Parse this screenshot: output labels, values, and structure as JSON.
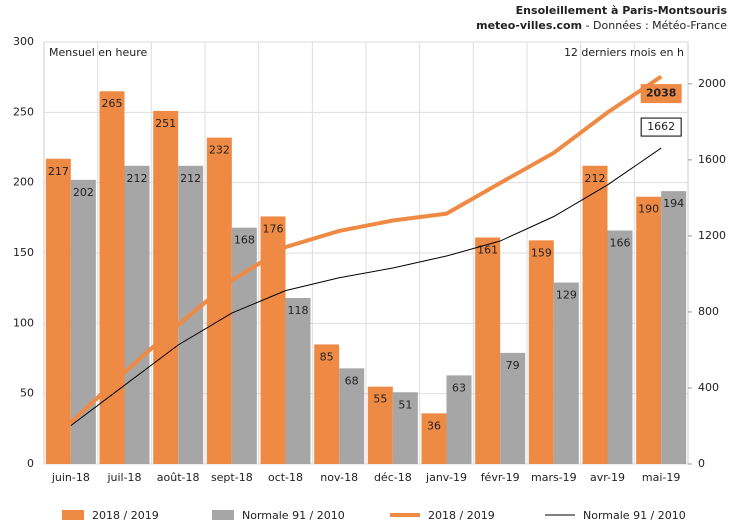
{
  "chart_data": {
    "type": "bar",
    "title": "Ensoleillement à Paris-Montsouris",
    "subtitle_source": "meteo-villes.com",
    "subtitle_rest": "- Données : Météo-France",
    "y_label": "Mensuel en heure",
    "y2_label": "12 derniers mois en h",
    "categories": [
      "juin-18",
      "juil-18",
      "août-18",
      "sept-18",
      "oct-18",
      "nov-18",
      "déc-18",
      "janv-19",
      "févr-19",
      "mars-19",
      "avr-19",
      "mai-19"
    ],
    "series": [
      {
        "name": "2018 / 2019",
        "type": "bar",
        "color": "#ef8a45",
        "values": [
          217,
          265,
          251,
          232,
          176,
          85,
          55,
          36,
          161,
          159,
          212,
          190
        ]
      },
      {
        "name": "Normale 91 / 2010",
        "type": "bar",
        "color": "#a6a6a6",
        "values": [
          202,
          212,
          212,
          168,
          118,
          68,
          51,
          63,
          79,
          129,
          166,
          194
        ]
      },
      {
        "name": "2018 / 2019",
        "type": "line",
        "axis": "y2",
        "color": "#ef8a45",
        "values": [
          217,
          482,
          733,
          965,
          1141,
          1226,
          1281,
          1317,
          1478,
          1637,
          1849,
          2038
        ]
      },
      {
        "name": "Normale 91 / 2010",
        "type": "line",
        "axis": "y2",
        "color": "#000000",
        "values": [
          202,
          414,
          626,
          794,
          912,
          980,
          1031,
          1094,
          1173,
          1302,
          1468,
          1662
        ]
      }
    ],
    "ylim": [
      0,
      300
    ],
    "yticks": [
      0,
      50,
      100,
      150,
      200,
      250,
      300
    ],
    "y2lim": [
      0,
      2220
    ],
    "y2ticks": [
      0,
      400,
      800,
      1200,
      1600,
      2000
    ],
    "grid": true
  }
}
